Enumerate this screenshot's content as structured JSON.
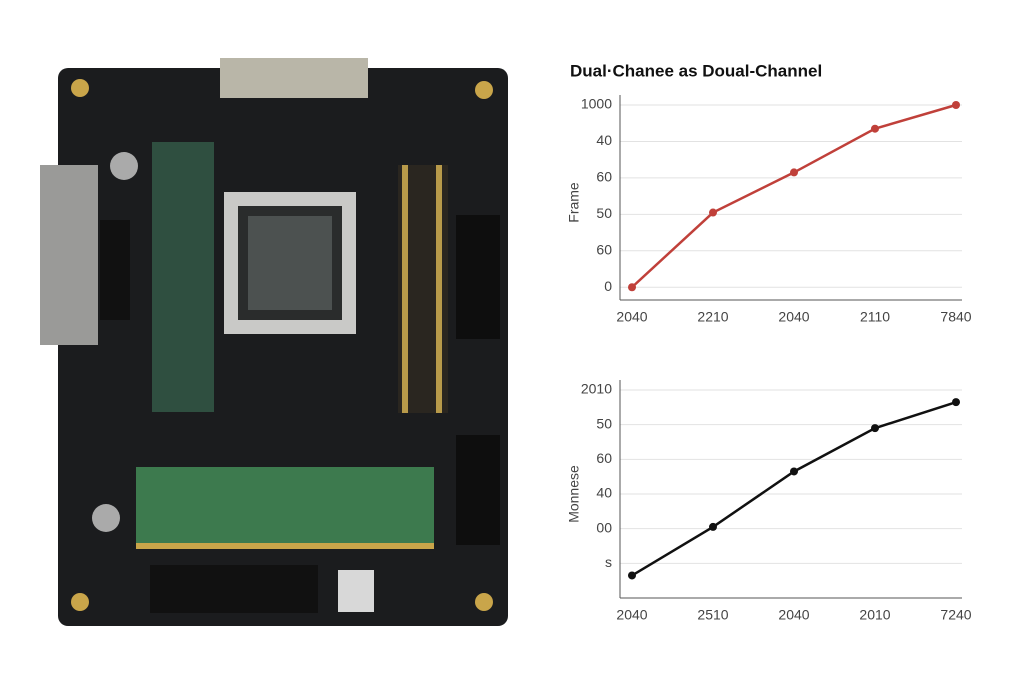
{
  "chart_data": [
    {
      "type": "line",
      "title": "Dual·Chanee as Doual-Channel",
      "y_label": "Frame",
      "categories": [
        "2040",
        "2210",
        "2040",
        "2110",
        "7840"
      ],
      "series": [
        {
          "name": null,
          "color": "#c0403a",
          "values": [
            0,
            41,
            63,
            87,
            100
          ]
        }
      ],
      "ylim": [
        -7,
        100
      ],
      "yticks": [
        0,
        {
          "value": 20,
          "label": "60"
        },
        {
          "value": 40,
          "label": "50"
        },
        60,
        {
          "value": 80,
          "label": "40"
        },
        {
          "value": 100,
          "label": "1000"
        }
      ],
      "grid": true
    },
    {
      "type": "line",
      "y_label": "Monnese",
      "categories": [
        "2040",
        "2510",
        "2040",
        "2010",
        "7240"
      ],
      "series": [
        {
          "name": null,
          "color": "#111111",
          "values": [
            -7,
            21,
            53,
            78,
            93
          ]
        }
      ],
      "ylim": [
        -20,
        100
      ],
      "yticks": [
        {
          "value": 0,
          "label": "s"
        },
        {
          "value": 20,
          "label": "00"
        },
        40,
        60,
        {
          "value": 80,
          "label": "50"
        },
        {
          "value": 100,
          "label": "2010"
        }
      ],
      "grid": true
    }
  ]
}
